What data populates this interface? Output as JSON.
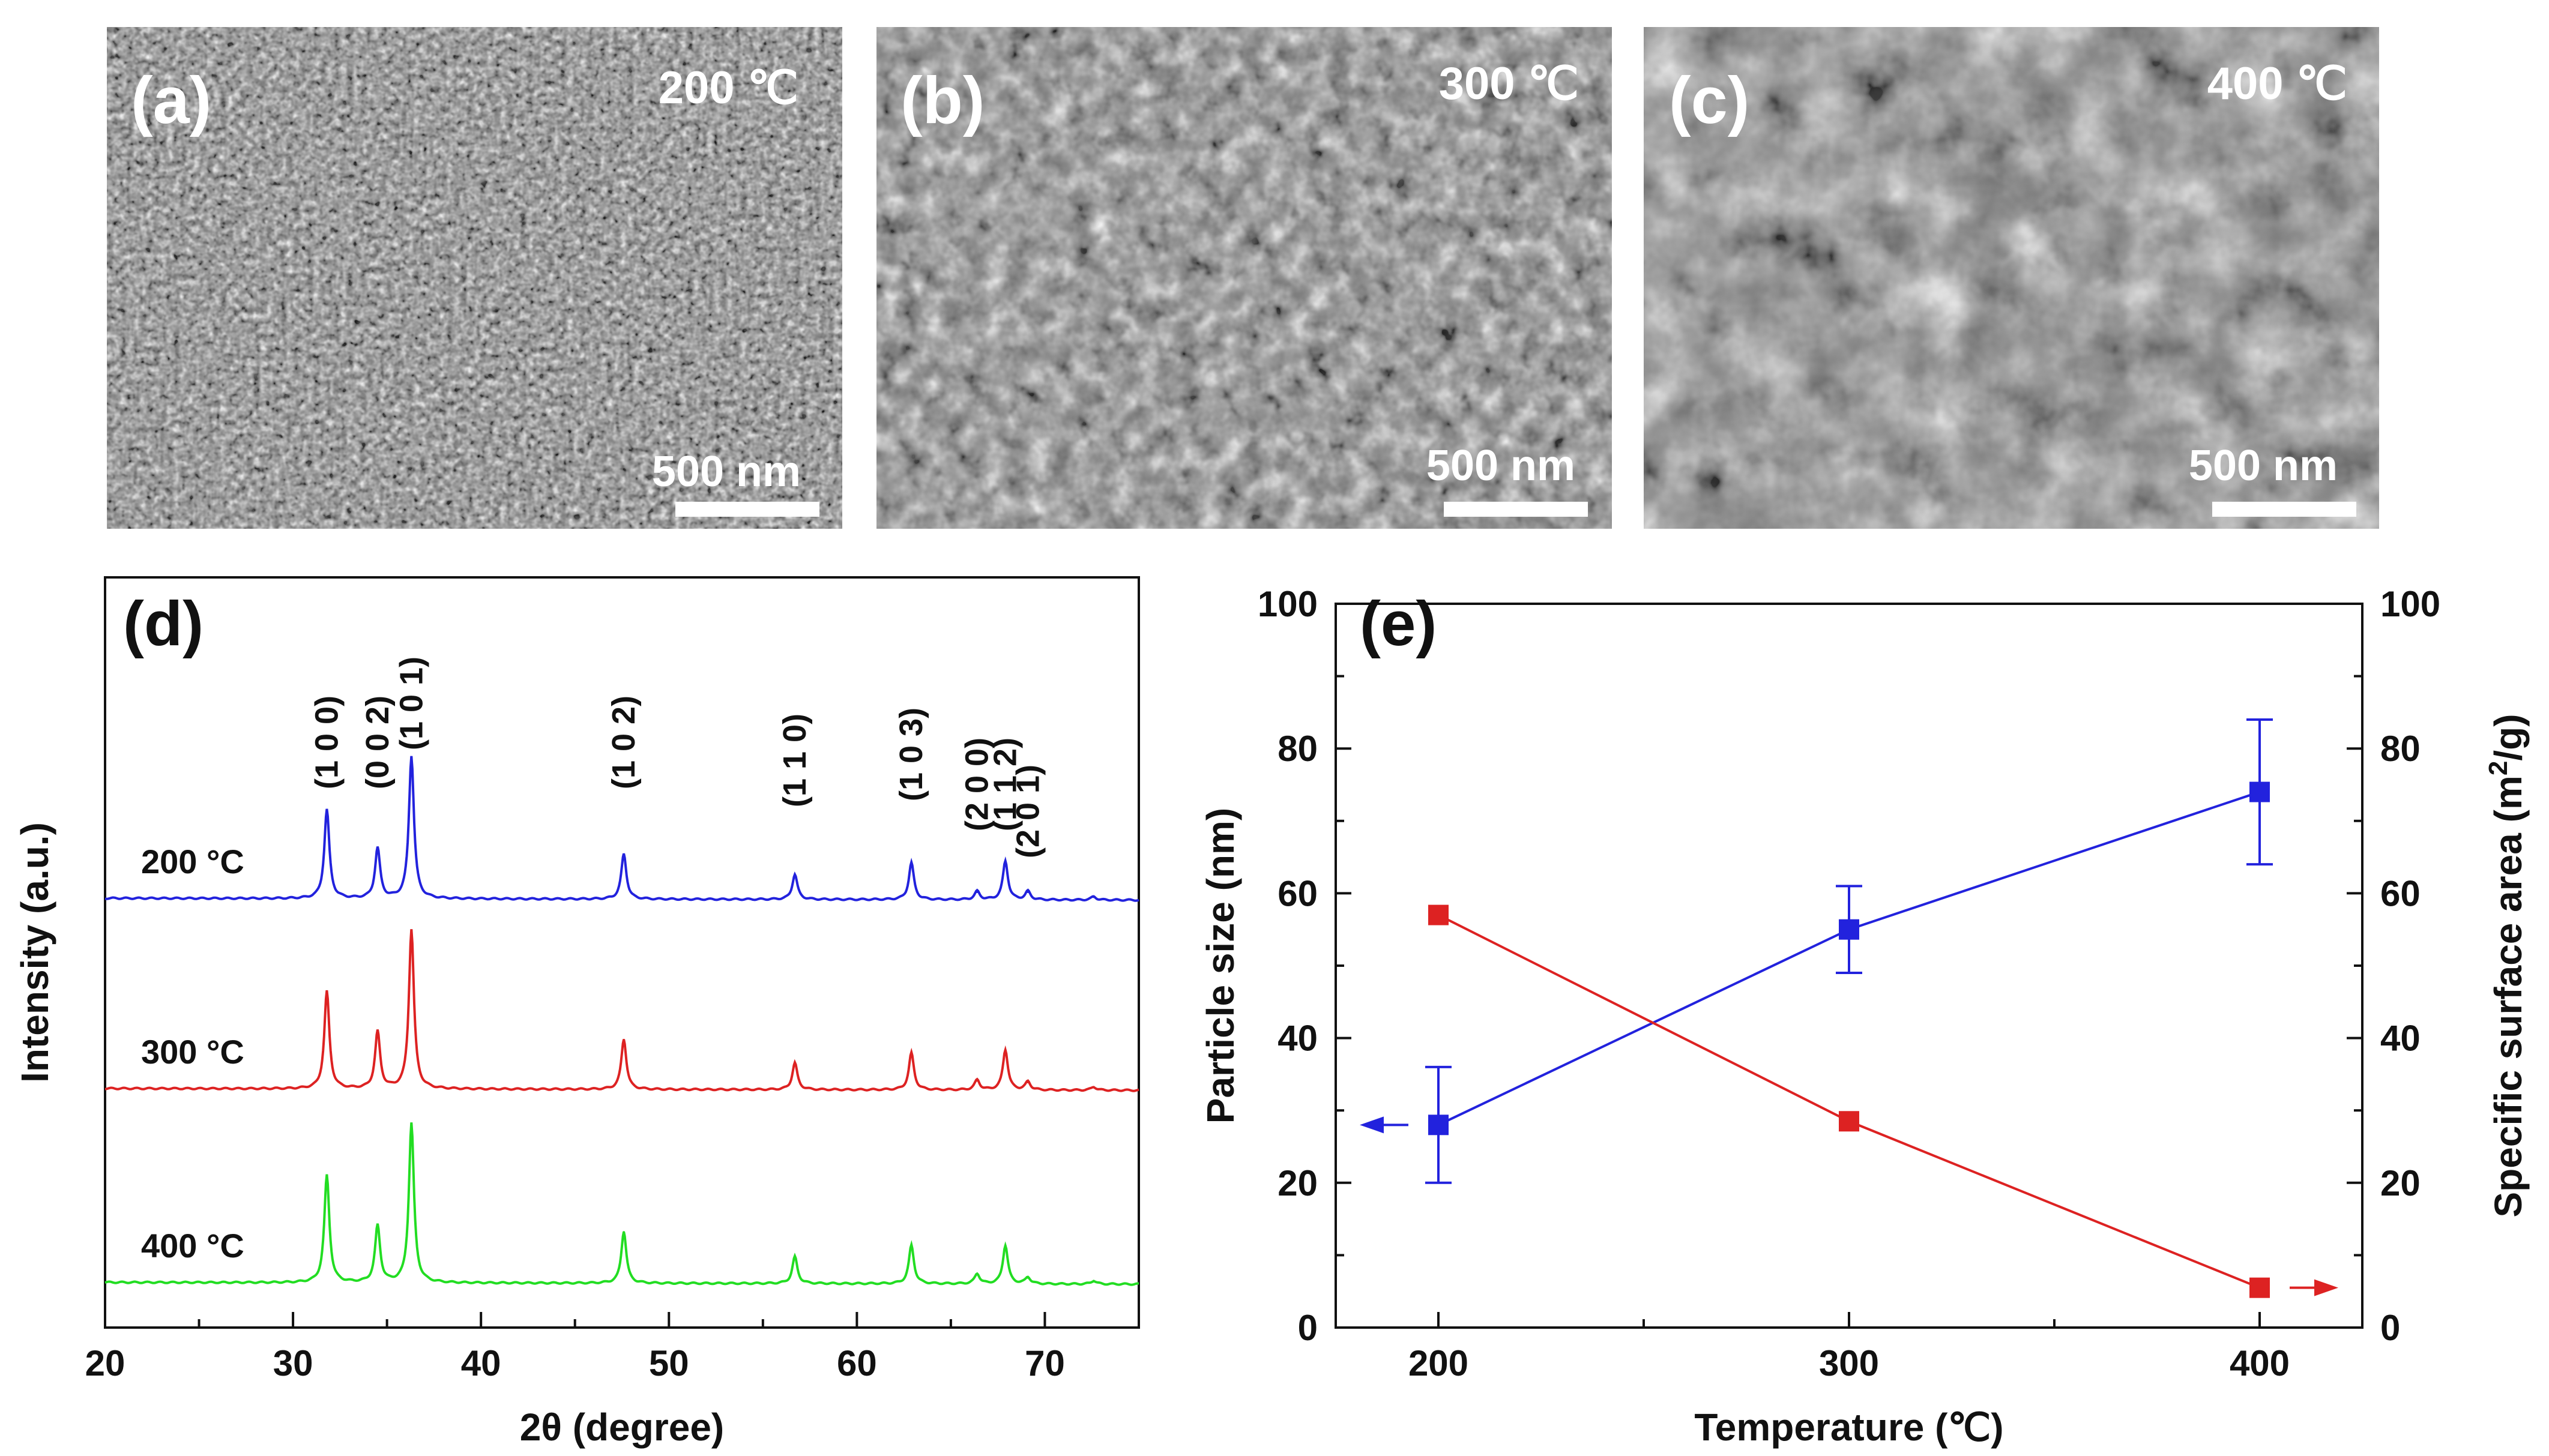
{
  "panels": {
    "a": {
      "label": "(a)",
      "temperature": "200 ℃",
      "scale_bar": "500 nm"
    },
    "b": {
      "label": "(b)",
      "temperature": "300 ℃",
      "scale_bar": "500 nm"
    },
    "c": {
      "label": "(c)",
      "temperature": "400 ℃",
      "scale_bar": "500 nm"
    }
  },
  "chart_data": [
    {
      "id": "d",
      "label": "(d)",
      "type": "line",
      "xlabel": "2θ (degree)",
      "ylabel": "Intensity (a.u.)",
      "xlim": [
        20,
        75
      ],
      "xticks": [
        20,
        30,
        40,
        50,
        60,
        70
      ],
      "series": [
        {
          "name": "200 °C",
          "color": "#2222dd",
          "peaks": [
            {
              "x": 31.8,
              "h": 0.53
            },
            {
              "x": 34.5,
              "h": 0.3
            },
            {
              "x": 36.3,
              "h": 0.85
            },
            {
              "x": 47.6,
              "h": 0.27
            },
            {
              "x": 56.7,
              "h": 0.15
            },
            {
              "x": 62.9,
              "h": 0.22
            },
            {
              "x": 66.4,
              "h": 0.05
            },
            {
              "x": 67.9,
              "h": 0.23
            },
            {
              "x": 69.1,
              "h": 0.05
            },
            {
              "x": 72.6,
              "h": 0.02
            }
          ]
        },
        {
          "name": "300 °C",
          "color": "#dd2222",
          "peaks": [
            {
              "x": 31.8,
              "h": 0.58
            },
            {
              "x": 34.5,
              "h": 0.34
            },
            {
              "x": 36.3,
              "h": 0.95
            },
            {
              "x": 47.6,
              "h": 0.3
            },
            {
              "x": 56.7,
              "h": 0.16
            },
            {
              "x": 62.9,
              "h": 0.22
            },
            {
              "x": 66.4,
              "h": 0.06
            },
            {
              "x": 67.9,
              "h": 0.24
            },
            {
              "x": 69.1,
              "h": 0.05
            },
            {
              "x": 72.6,
              "h": 0.02
            }
          ]
        },
        {
          "name": "400 °C",
          "color": "#22dd22",
          "peaks": [
            {
              "x": 31.8,
              "h": 0.64
            },
            {
              "x": 34.5,
              "h": 0.34
            },
            {
              "x": 36.3,
              "h": 0.95
            },
            {
              "x": 47.6,
              "h": 0.31
            },
            {
              "x": 56.7,
              "h": 0.16
            },
            {
              "x": 62.9,
              "h": 0.23
            },
            {
              "x": 66.4,
              "h": 0.06
            },
            {
              "x": 67.9,
              "h": 0.23
            },
            {
              "x": 69.1,
              "h": 0.04
            },
            {
              "x": 72.6,
              "h": 0.02
            }
          ]
        }
      ],
      "annotations": [
        {
          "text": "(1 0 0)",
          "x": 31.8
        },
        {
          "text": "(0 0 2)",
          "x": 34.5
        },
        {
          "text": "(1 0 1)",
          "x": 36.3
        },
        {
          "text": "(1 0 2)",
          "x": 47.6
        },
        {
          "text": "(1 1 0)",
          "x": 56.7
        },
        {
          "text": "(1 0 3)",
          "x": 62.9
        },
        {
          "text": "(2 0 0)",
          "x": 66.4
        },
        {
          "text": "(1 1 2)",
          "x": 67.9
        },
        {
          "text": "(2 0 1)",
          "x": 69.1
        }
      ]
    },
    {
      "id": "e",
      "label": "(e)",
      "type": "line",
      "xlabel": "Temperature (℃)",
      "ylabel_left": "Particle size (nm)",
      "ylabel_right": "Specific surface area (m",
      "ylabel_right_sup": "2",
      "ylabel_right_end": "/g)",
      "xlim": [
        175,
        425
      ],
      "xticks": [
        200,
        300,
        400
      ],
      "ylim": [
        0,
        100
      ],
      "yticks": [
        0,
        20,
        40,
        60,
        80,
        100
      ],
      "series": [
        {
          "name": "Particle size",
          "axis": "left",
          "color": "#2222dd",
          "x": [
            200,
            300,
            400
          ],
          "y": [
            28,
            55,
            74
          ],
          "error": [
            8,
            6,
            10
          ]
        },
        {
          "name": "Specific surface area",
          "axis": "right",
          "color": "#dd2222",
          "x": [
            200,
            300,
            400
          ],
          "y": [
            57,
            28.5,
            5.5
          ]
        }
      ]
    }
  ]
}
